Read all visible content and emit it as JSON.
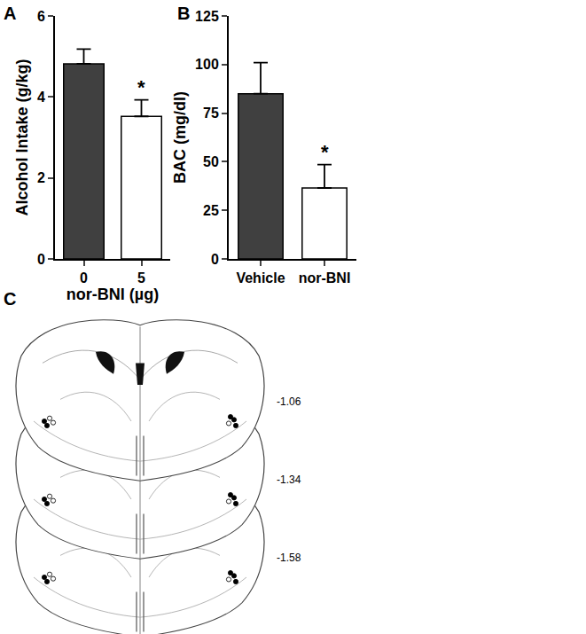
{
  "chart_data": [
    {
      "type": "bar",
      "panel_label": "A",
      "categories": [
        "0",
        "5"
      ],
      "values": [
        4.82,
        3.52
      ],
      "errors": [
        0.36,
        0.41
      ],
      "colors": [
        "#404040",
        "#ffffff"
      ],
      "x_label": "nor-BNI (µg)",
      "y_label": "Alcohol Intake (g/kg)",
      "ylim": [
        0,
        6
      ],
      "yticks": [
        0,
        2,
        4,
        6
      ],
      "grid": false,
      "annotations": [
        {
          "category": "5",
          "text": "*"
        }
      ]
    },
    {
      "type": "bar",
      "panel_label": "B",
      "categories": [
        "Vehicle",
        "nor-BNI"
      ],
      "values": [
        85,
        36.5
      ],
      "errors": [
        16,
        12
      ],
      "colors": [
        "#404040",
        "#ffffff"
      ],
      "y_label": "BAC (mg/dl)",
      "ylim": [
        0,
        125
      ],
      "yticks": [
        0,
        25,
        50,
        75,
        100,
        125
      ],
      "grid": false,
      "annotations": [
        {
          "category": "nor-BNI",
          "text": "*"
        }
      ]
    }
  ],
  "diagram": {
    "panel_label": "C",
    "sections": [
      "-1.06",
      "-1.34",
      "-1.58"
    ]
  }
}
